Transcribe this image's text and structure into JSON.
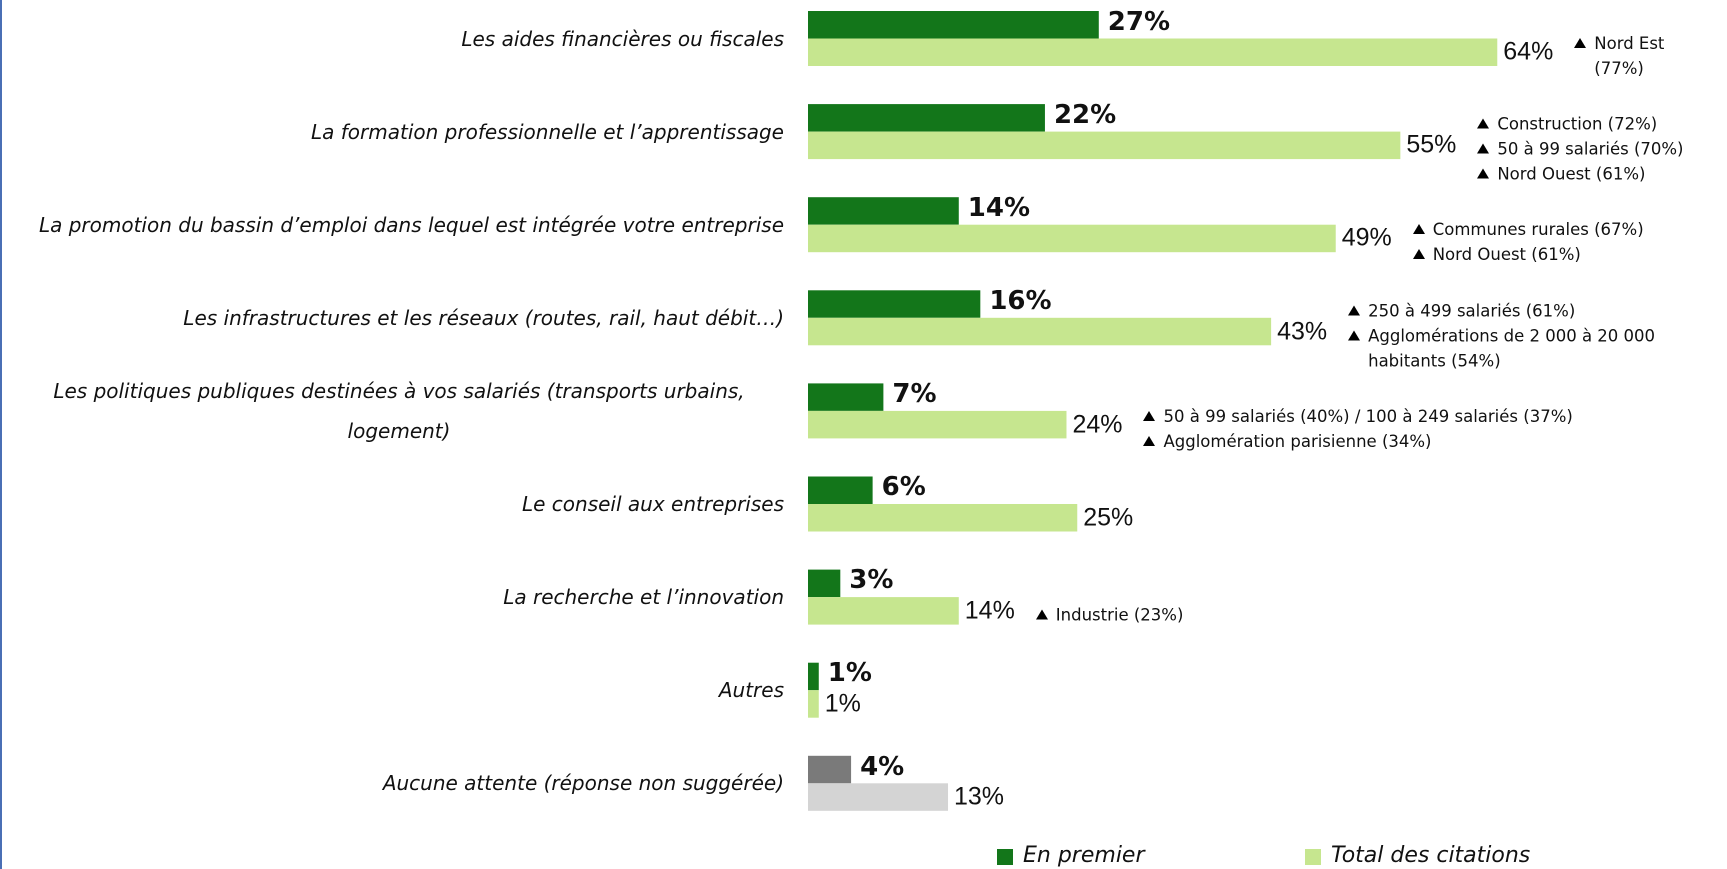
{
  "chart_data": {
    "type": "bar",
    "orientation": "horizontal",
    "categories": [
      "Les aides financières ou fiscales",
      "La formation professionnelle et l’apprentissage",
      "La promotion du bassin d’emploi dans lequel est intégrée votre entreprise",
      "Les infrastructures et les réseaux (routes, rail, haut débit…)",
      "Les politiques publiques destinées à vos salariés (transports urbains, logement)",
      "Le conseil aux entreprises",
      "La recherche et l’innovation",
      "Autres",
      "Aucune attente (réponse non suggérée)"
    ],
    "series": [
      {
        "name": "En premier",
        "color": "#13761a",
        "colors": [
          "#13761a",
          "#13761a",
          "#13761a",
          "#13761a",
          "#13761a",
          "#13761a",
          "#13761a",
          "#13761a",
          "#7a7a7a"
        ],
        "values": [
          27,
          22,
          14,
          16,
          7,
          6,
          3,
          1,
          4
        ],
        "value_labels": [
          "27%",
          "22%",
          "14%",
          "16%",
          "7%",
          "6%",
          "3%",
          "1%",
          "4%"
        ]
      },
      {
        "name": "Total des citations",
        "color": "#c6e68f",
        "colors": [
          "#c6e68f",
          "#c6e68f",
          "#c6e68f",
          "#c6e68f",
          "#c6e68f",
          "#c6e68f",
          "#c6e68f",
          "#c6e68f",
          "#d4d4d4"
        ],
        "values": [
          64,
          55,
          49,
          43,
          24,
          25,
          14,
          1,
          13
        ],
        "value_labels": [
          "64%",
          "55%",
          "49%",
          "43%",
          "24%",
          "25%",
          "14%",
          "1%",
          "13%"
        ]
      }
    ],
    "annotations": [
      [
        "Nord Est (77%)"
      ],
      [
        "Construction (72%)",
        "50 à 99 salariés (70%)",
        "Nord Ouest (61%)"
      ],
      [
        "Communes rurales (67%)",
        "Nord Ouest (61%)"
      ],
      [
        "250 à 499 salariés (61%)",
        "Agglomérations de 2 000 à 20 000 habitants (54%)"
      ],
      [
        "50 à 99 salariés (40%) / 100 à 249 salariés (37%)",
        "Agglomération parisienne (34%)"
      ],
      [],
      [
        "Industrie (23%)"
      ],
      [],
      []
    ],
    "legend": "bottom"
  }
}
